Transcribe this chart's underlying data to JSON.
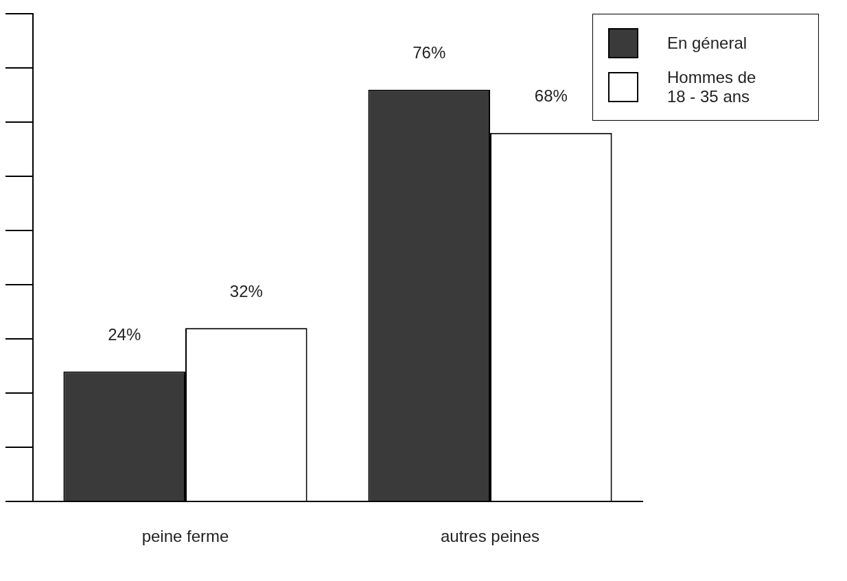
{
  "chart_data": {
    "type": "bar",
    "categories": [
      "peine ferme",
      "autres peines"
    ],
    "series": [
      {
        "name": "En géneral",
        "color": "#3a3a3a",
        "values": [
          24,
          76
        ],
        "value_labels": [
          "24%",
          "76%"
        ]
      },
      {
        "name": "Hommes de 18 - 35 ans",
        "color": "#ffffff",
        "values": [
          32,
          68
        ],
        "value_labels": [
          "32%",
          "68%"
        ]
      }
    ],
    "tick_labels": "x",
    "legend": "top right"
  }
}
